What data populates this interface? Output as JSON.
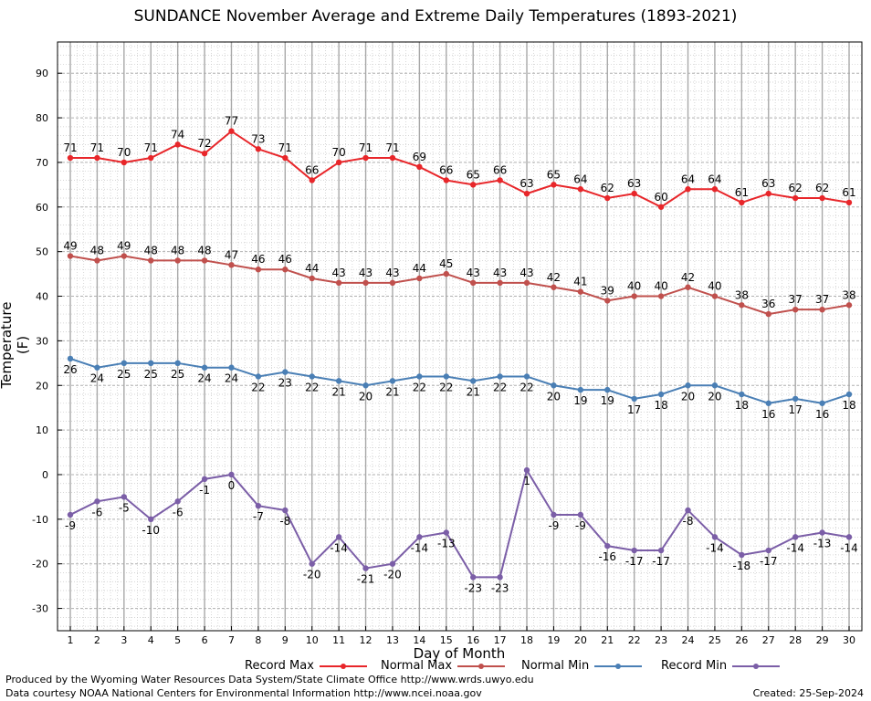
{
  "chart_data": {
    "type": "line",
    "title": "SUNDANCE November Average and Extreme Daily Temperatures (1893-2021)",
    "xlabel": "Day of Month",
    "ylabel": "Temperature (F)",
    "ylim": [
      -35,
      97
    ],
    "yticks": [
      -30,
      -20,
      -10,
      0,
      10,
      20,
      30,
      40,
      50,
      60,
      70,
      80,
      90
    ],
    "x": [
      1,
      2,
      3,
      4,
      5,
      6,
      7,
      8,
      9,
      10,
      11,
      12,
      13,
      14,
      15,
      16,
      17,
      18,
      19,
      20,
      21,
      22,
      23,
      24,
      25,
      26,
      27,
      28,
      29,
      30
    ],
    "grid": true,
    "legend_position": "bottom",
    "series": [
      {
        "name": "Record Max",
        "color": "#e8262a",
        "label_pos": "above",
        "values": [
          71,
          71,
          70,
          71,
          74,
          72,
          77,
          73,
          71,
          66,
          70,
          71,
          71,
          69,
          66,
          65,
          66,
          63,
          65,
          64,
          62,
          63,
          60,
          64,
          64,
          61,
          63,
          62,
          62,
          61
        ]
      },
      {
        "name": "Normal Max",
        "color": "#c0504d",
        "label_pos": "above",
        "values": [
          49,
          48,
          49,
          48,
          48,
          48,
          47,
          46,
          46,
          44,
          43,
          43,
          43,
          44,
          45,
          43,
          43,
          43,
          42,
          41,
          39,
          40,
          40,
          42,
          40,
          38,
          36,
          37,
          37,
          38
        ]
      },
      {
        "name": "Normal Min",
        "color": "#4a7fb5",
        "label_pos": "below",
        "values": [
          26,
          24,
          25,
          25,
          25,
          24,
          24,
          22,
          23,
          22,
          21,
          20,
          21,
          22,
          22,
          21,
          22,
          22,
          20,
          19,
          19,
          17,
          18,
          20,
          20,
          18,
          16,
          17,
          16,
          18
        ]
      },
      {
        "name": "Record Min",
        "color": "#7b5ea7",
        "label_pos": "below",
        "values": [
          -9,
          -6,
          -5,
          -10,
          -6,
          -1,
          0,
          -7,
          -8,
          -20,
          -14,
          -21,
          -20,
          -14,
          -13,
          -23,
          -23,
          1,
          -9,
          -9,
          -16,
          -17,
          -17,
          -8,
          -14,
          -18,
          -17,
          -14,
          -13,
          -14
        ]
      }
    ]
  },
  "footer": {
    "produced_by": "Produced by the Wyoming Water Resources Data System/State Climate Office http://www.wrds.uwyo.edu",
    "data_courtesy": "Data courtesy NOAA National Centers for Environmental Information http://www.ncei.noaa.gov",
    "created": "Created: 25-Sep-2024"
  }
}
